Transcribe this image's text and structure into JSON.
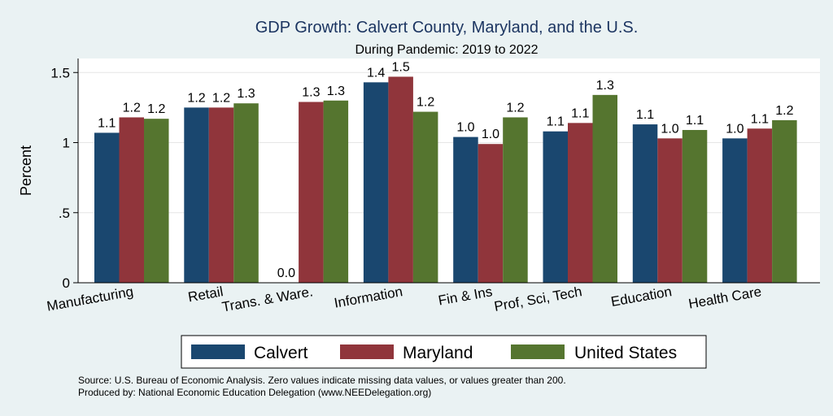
{
  "chart_data": {
    "type": "bar",
    "title": "GDP Growth: Calvert County, Maryland, and the U.S.",
    "subtitle": "During Pandemic: 2019 to 2022",
    "ylabel": "Percent",
    "xlabel": "",
    "ylim": [
      0,
      1.6
    ],
    "yticks": [
      0,
      0.5,
      1,
      1.5
    ],
    "ytick_labels": [
      "0",
      ".5",
      "1",
      "1.5"
    ],
    "grid": true,
    "legend_position": "bottom",
    "categories": [
      "Manufacturing",
      "Retail",
      "Trans. & Ware.",
      "Information",
      "Fin & Ins",
      "Prof, Sci, Tech",
      "Education",
      "Health Care"
    ],
    "series": [
      {
        "name": "Calvert",
        "color": "#1a476f",
        "values": [
          1.07,
          1.25,
          0.0,
          1.43,
          1.04,
          1.08,
          1.13,
          1.03
        ],
        "labels": [
          "1.1",
          "1.2",
          "0.0",
          "1.4",
          "1.0",
          "1.1",
          "1.1",
          "1.0"
        ]
      },
      {
        "name": "Maryland",
        "color": "#90353b",
        "values": [
          1.18,
          1.25,
          1.29,
          1.47,
          0.99,
          1.14,
          1.03,
          1.1
        ],
        "labels": [
          "1.2",
          "1.2",
          "1.3",
          "1.5",
          "1.0",
          "1.1",
          "1.0",
          "1.1"
        ]
      },
      {
        "name": "United States",
        "color": "#55752f",
        "values": [
          1.17,
          1.28,
          1.3,
          1.22,
          1.18,
          1.34,
          1.09,
          1.16
        ],
        "labels": [
          "1.2",
          "1.3",
          "1.3",
          "1.2",
          "1.2",
          "1.3",
          "1.1",
          "1.2"
        ]
      }
    ],
    "notes": [
      "Source: U.S. Bureau of Economic Analysis. Zero values indicate missing data values, or values greater than 200.",
      "Produced by: National Economic Education Delegation (www.NEEDelegation.org)"
    ]
  }
}
